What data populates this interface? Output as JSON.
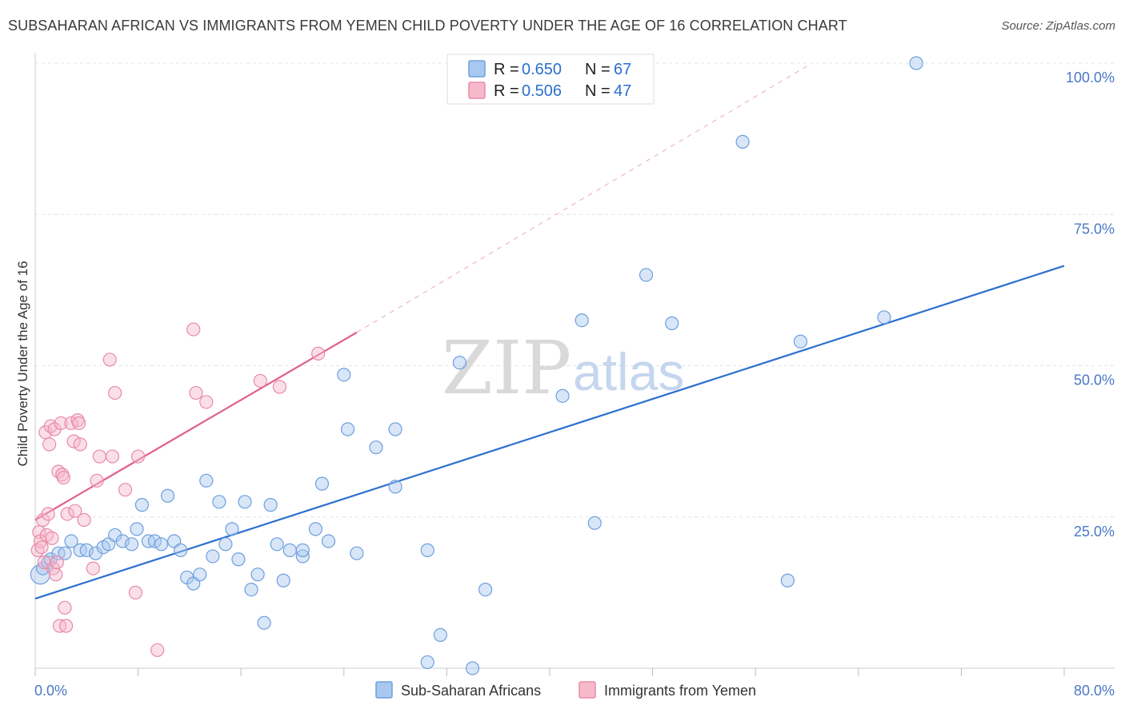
{
  "header": {
    "title": "SUBSAHARAN AFRICAN VS IMMIGRANTS FROM YEMEN CHILD POVERTY UNDER THE AGE OF 16 CORRELATION CHART",
    "source": "Source: ZipAtlas.com"
  },
  "watermark": {
    "zip": "ZIP",
    "atlas": "atlas"
  },
  "legend": {
    "series1": {
      "r_label": "R = ",
      "r_value": "0.650",
      "n_label": "N = ",
      "n_value": "67"
    },
    "series2": {
      "r_label": "R = ",
      "r_value": "0.506",
      "n_label": "N = ",
      "n_value": "47"
    }
  },
  "colors": {
    "blue_fill": "#a9c8f0",
    "blue_stroke": "#6e9fdc",
    "blue_line": "#2b6fcf",
    "pink_fill": "#f6b9cb",
    "pink_stroke": "#e88aa6",
    "pink_line": "#e0618a",
    "grid": "#e4e4e4",
    "tick_text": "#4a78c4"
  },
  "chart_data": {
    "type": "scatter",
    "title": "SUBSAHARAN AFRICAN VS IMMIGRANTS FROM YEMEN CHILD POVERTY UNDER THE AGE OF 16 CORRELATION CHART",
    "xlabel": "",
    "ylabel": "Child Poverty Under the Age of 16",
    "xlim": [
      0,
      80
    ],
    "ylim": [
      0,
      100
    ],
    "x_tick_labels": [
      "0.0%",
      "80.0%"
    ],
    "y_ticks": [
      25,
      50,
      75,
      100
    ],
    "y_tick_labels": [
      "25.0%",
      "50.0%",
      "75.0%",
      "100.0%"
    ],
    "grid": true,
    "series": [
      {
        "name": "Sub-Saharan Africans",
        "color": "#6e9fdc",
        "r": 0.65,
        "n": 67,
        "trend": {
          "x": [
            0,
            80
          ],
          "y": [
            11.5,
            66.5
          ],
          "dashed_extension": false
        },
        "points": [
          [
            0.4,
            15.5
          ],
          [
            0.6,
            16.5
          ],
          [
            1.0,
            17.5
          ],
          [
            1.2,
            18.0
          ],
          [
            1.8,
            19.0
          ],
          [
            2.3,
            19.0
          ],
          [
            2.8,
            21.0
          ],
          [
            3.5,
            19.5
          ],
          [
            4.0,
            19.5
          ],
          [
            4.7,
            19.0
          ],
          [
            5.3,
            20.0
          ],
          [
            5.7,
            20.5
          ],
          [
            6.2,
            22.0
          ],
          [
            6.8,
            21.0
          ],
          [
            7.5,
            20.5
          ],
          [
            7.9,
            23.0
          ],
          [
            8.3,
            27.0
          ],
          [
            8.8,
            21.0
          ],
          [
            9.3,
            21.0
          ],
          [
            9.8,
            20.5
          ],
          [
            10.3,
            28.5
          ],
          [
            10.8,
            21.0
          ],
          [
            11.3,
            19.5
          ],
          [
            11.8,
            15.0
          ],
          [
            12.3,
            14.0
          ],
          [
            12.8,
            15.5
          ],
          [
            13.3,
            31.0
          ],
          [
            13.8,
            18.5
          ],
          [
            14.3,
            27.5
          ],
          [
            14.8,
            20.5
          ],
          [
            15.3,
            23.0
          ],
          [
            15.8,
            18.0
          ],
          [
            16.3,
            27.5
          ],
          [
            16.8,
            13.0
          ],
          [
            17.3,
            15.5
          ],
          [
            17.8,
            7.5
          ],
          [
            18.3,
            27.0
          ],
          [
            18.8,
            20.5
          ],
          [
            19.3,
            14.5
          ],
          [
            19.8,
            19.5
          ],
          [
            20.8,
            18.5
          ],
          [
            20.8,
            19.5
          ],
          [
            21.8,
            23.0
          ],
          [
            22.3,
            30.5
          ],
          [
            22.8,
            21.0
          ],
          [
            24.0,
            48.5
          ],
          [
            24.3,
            39.5
          ],
          [
            25.0,
            19.0
          ],
          [
            26.5,
            36.5
          ],
          [
            28.0,
            30.0
          ],
          [
            28.0,
            39.5
          ],
          [
            30.5,
            19.5
          ],
          [
            30.5,
            1.0
          ],
          [
            31.5,
            5.5
          ],
          [
            33.0,
            50.5
          ],
          [
            34.0,
            0.0
          ],
          [
            35.0,
            13.0
          ],
          [
            41.0,
            45.0
          ],
          [
            42.5,
            57.5
          ],
          [
            43.5,
            24.0
          ],
          [
            47.5,
            65.0
          ],
          [
            49.5,
            57.0
          ],
          [
            55.0,
            87.0
          ],
          [
            58.5,
            14.5
          ],
          [
            59.5,
            54.0
          ],
          [
            66.0,
            58.0
          ],
          [
            68.5,
            100.0
          ]
        ]
      },
      {
        "name": "Immigrants from Yemen",
        "color": "#e88aa6",
        "r": 0.506,
        "n": 47,
        "trend": {
          "x": [
            0,
            25
          ],
          "y": [
            24.5,
            55.5
          ],
          "dashed_extension": {
            "x": [
              25,
              60
            ],
            "y": [
              55.5,
              99.5
            ]
          }
        },
        "points": [
          [
            0.2,
            19.5
          ],
          [
            0.3,
            22.5
          ],
          [
            0.4,
            21.0
          ],
          [
            0.5,
            20.0
          ],
          [
            0.6,
            24.5
          ],
          [
            0.7,
            17.5
          ],
          [
            0.8,
            39.0
          ],
          [
            0.9,
            22.0
          ],
          [
            1.0,
            25.5
          ],
          [
            1.1,
            37.0
          ],
          [
            1.2,
            40.0
          ],
          [
            1.3,
            21.5
          ],
          [
            1.4,
            16.5
          ],
          [
            1.5,
            39.5
          ],
          [
            1.6,
            15.5
          ],
          [
            1.7,
            17.5
          ],
          [
            1.8,
            32.5
          ],
          [
            1.9,
            7.0
          ],
          [
            2.0,
            40.5
          ],
          [
            2.1,
            32.0
          ],
          [
            2.2,
            31.5
          ],
          [
            2.3,
            10.0
          ],
          [
            2.4,
            7.0
          ],
          [
            2.5,
            25.5
          ],
          [
            2.8,
            40.5
          ],
          [
            3.0,
            37.5
          ],
          [
            3.1,
            26.0
          ],
          [
            3.3,
            41.0
          ],
          [
            3.4,
            40.5
          ],
          [
            3.5,
            37.0
          ],
          [
            3.8,
            24.5
          ],
          [
            4.5,
            16.5
          ],
          [
            4.8,
            31.0
          ],
          [
            5.0,
            35.0
          ],
          [
            5.8,
            51.0
          ],
          [
            6.0,
            35.0
          ],
          [
            6.2,
            45.5
          ],
          [
            7.0,
            29.5
          ],
          [
            7.8,
            12.5
          ],
          [
            8.0,
            35.0
          ],
          [
            9.5,
            3.0
          ],
          [
            12.3,
            56.0
          ],
          [
            12.5,
            45.5
          ],
          [
            13.3,
            44.0
          ],
          [
            17.5,
            47.5
          ],
          [
            19.0,
            46.5
          ],
          [
            22.0,
            52.0
          ]
        ]
      }
    ]
  },
  "bottom_legend": {
    "item1": "Sub-Saharan Africans",
    "item2": "Immigrants from Yemen"
  }
}
